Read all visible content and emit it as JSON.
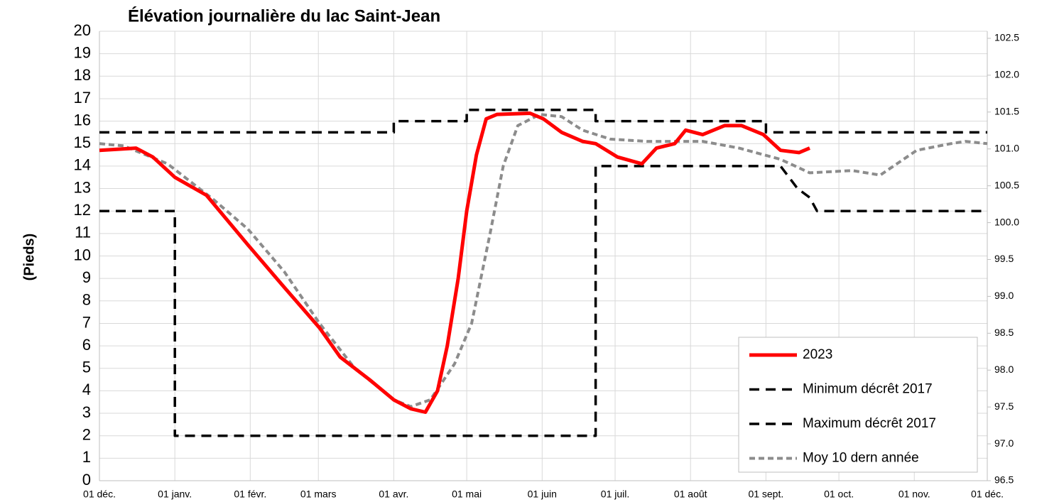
{
  "chart_data": {
    "type": "line",
    "title": "Élévation journalière  du lac Saint-Jean",
    "y_label": "(Pieds)",
    "xlim": [
      0,
      365
    ],
    "xticks": [
      {
        "value": 0,
        "label": "01 déc."
      },
      {
        "value": 31,
        "label": "01 janv."
      },
      {
        "value": 62,
        "label": "01 févr."
      },
      {
        "value": 90,
        "label": "01 mars"
      },
      {
        "value": 121,
        "label": "01 avr."
      },
      {
        "value": 151,
        "label": "01 mai"
      },
      {
        "value": 182,
        "label": "01 juin"
      },
      {
        "value": 212,
        "label": "01 juil."
      },
      {
        "value": 243,
        "label": "01 août"
      },
      {
        "value": 274,
        "label": "01 sept."
      },
      {
        "value": 304,
        "label": "01 oct."
      },
      {
        "value": 335,
        "label": "01 nov."
      },
      {
        "value": 365,
        "label": "01 déc."
      }
    ],
    "ylim": [
      0,
      20
    ],
    "yticks": [
      0,
      1,
      2,
      3,
      4,
      5,
      6,
      7,
      8,
      9,
      10,
      11,
      12,
      13,
      14,
      15,
      16,
      17,
      18,
      19,
      20
    ],
    "y2lim": [
      96.5,
      102.596
    ],
    "y2ticks": [
      96.5,
      {
        "value": 97,
        "label": "97.0"
      },
      97.5,
      {
        "value": 98,
        "label": "98.0"
      },
      98.5,
      {
        "value": 99,
        "label": "99.0"
      },
      99.5,
      {
        "value": 100,
        "label": "100.0"
      },
      100.5,
      {
        "value": 101,
        "label": "101.0"
      },
      101.5,
      {
        "value": 102,
        "label": "102.0"
      },
      102.5
    ],
    "grid": true,
    "legend": "lower right",
    "series": [
      {
        "name": "2023",
        "color": "#ff0000",
        "line_style": "solid",
        "x": [
          0,
          15,
          22,
          31,
          44,
          61,
          76,
          90.5,
          99,
          111,
          121,
          128,
          134,
          139,
          143,
          147.5,
          151,
          155,
          159,
          163.5,
          177,
          182.5,
          190,
          198.6,
          204,
          213,
          223,
          229,
          236.5,
          241,
          248,
          257,
          264,
          273,
          280,
          287.6,
          292
        ],
        "values": [
          14.7,
          14.8,
          14.4,
          13.5,
          12.7,
          10.5,
          8.6,
          6.8,
          5.5,
          4.5,
          3.6,
          3.2,
          3.05,
          4,
          6,
          9,
          12,
          14.5,
          16.1,
          16.3,
          16.35,
          16.1,
          15.5,
          15.1,
          15,
          14.4,
          14.1,
          14.8,
          15,
          15.6,
          15.4,
          15.8,
          15.8,
          15.4,
          14.7,
          14.6,
          14.8
        ]
      },
      {
        "name": "Minimum décrêt 2017",
        "color": "#000000",
        "line_style": "dashed",
        "x": [
          0,
          31,
          31,
          204,
          204,
          280,
          287,
          292,
          295,
          365
        ],
        "values": [
          12,
          12,
          2,
          2,
          14,
          14,
          13,
          12.6,
          12,
          12
        ]
      },
      {
        "name": "Maximum décrêt 2017",
        "color": "#000000",
        "line_style": "dashed",
        "x": [
          0,
          121,
          121,
          151,
          151,
          204,
          204,
          274,
          274,
          365
        ],
        "values": [
          15.5,
          15.5,
          16,
          16,
          16.5,
          16.5,
          16,
          16,
          15.5,
          15.5
        ]
      },
      {
        "name": "Moy 10 dern année",
        "color": "#8c8c8c",
        "line_style": "dotted",
        "x": [
          0,
          10,
          28,
          47,
          61,
          76,
          90.5,
          105,
          121,
          128,
          136,
          146,
          153,
          160.6,
          166,
          172,
          181,
          190,
          198.6,
          210,
          225,
          248,
          263,
          280,
          292,
          309.5,
          321,
          336,
          350,
          356,
          365
        ],
        "values": [
          15,
          14.9,
          14.1,
          12.5,
          11.2,
          9.3,
          7,
          5,
          3.6,
          3.3,
          3.6,
          5.2,
          7,
          11,
          14,
          15.8,
          16.3,
          16.2,
          15.6,
          15.2,
          15.1,
          15.1,
          14.8,
          14.3,
          13.7,
          13.8,
          13.6,
          14.7,
          15,
          15.1,
          15
        ]
      }
    ]
  }
}
